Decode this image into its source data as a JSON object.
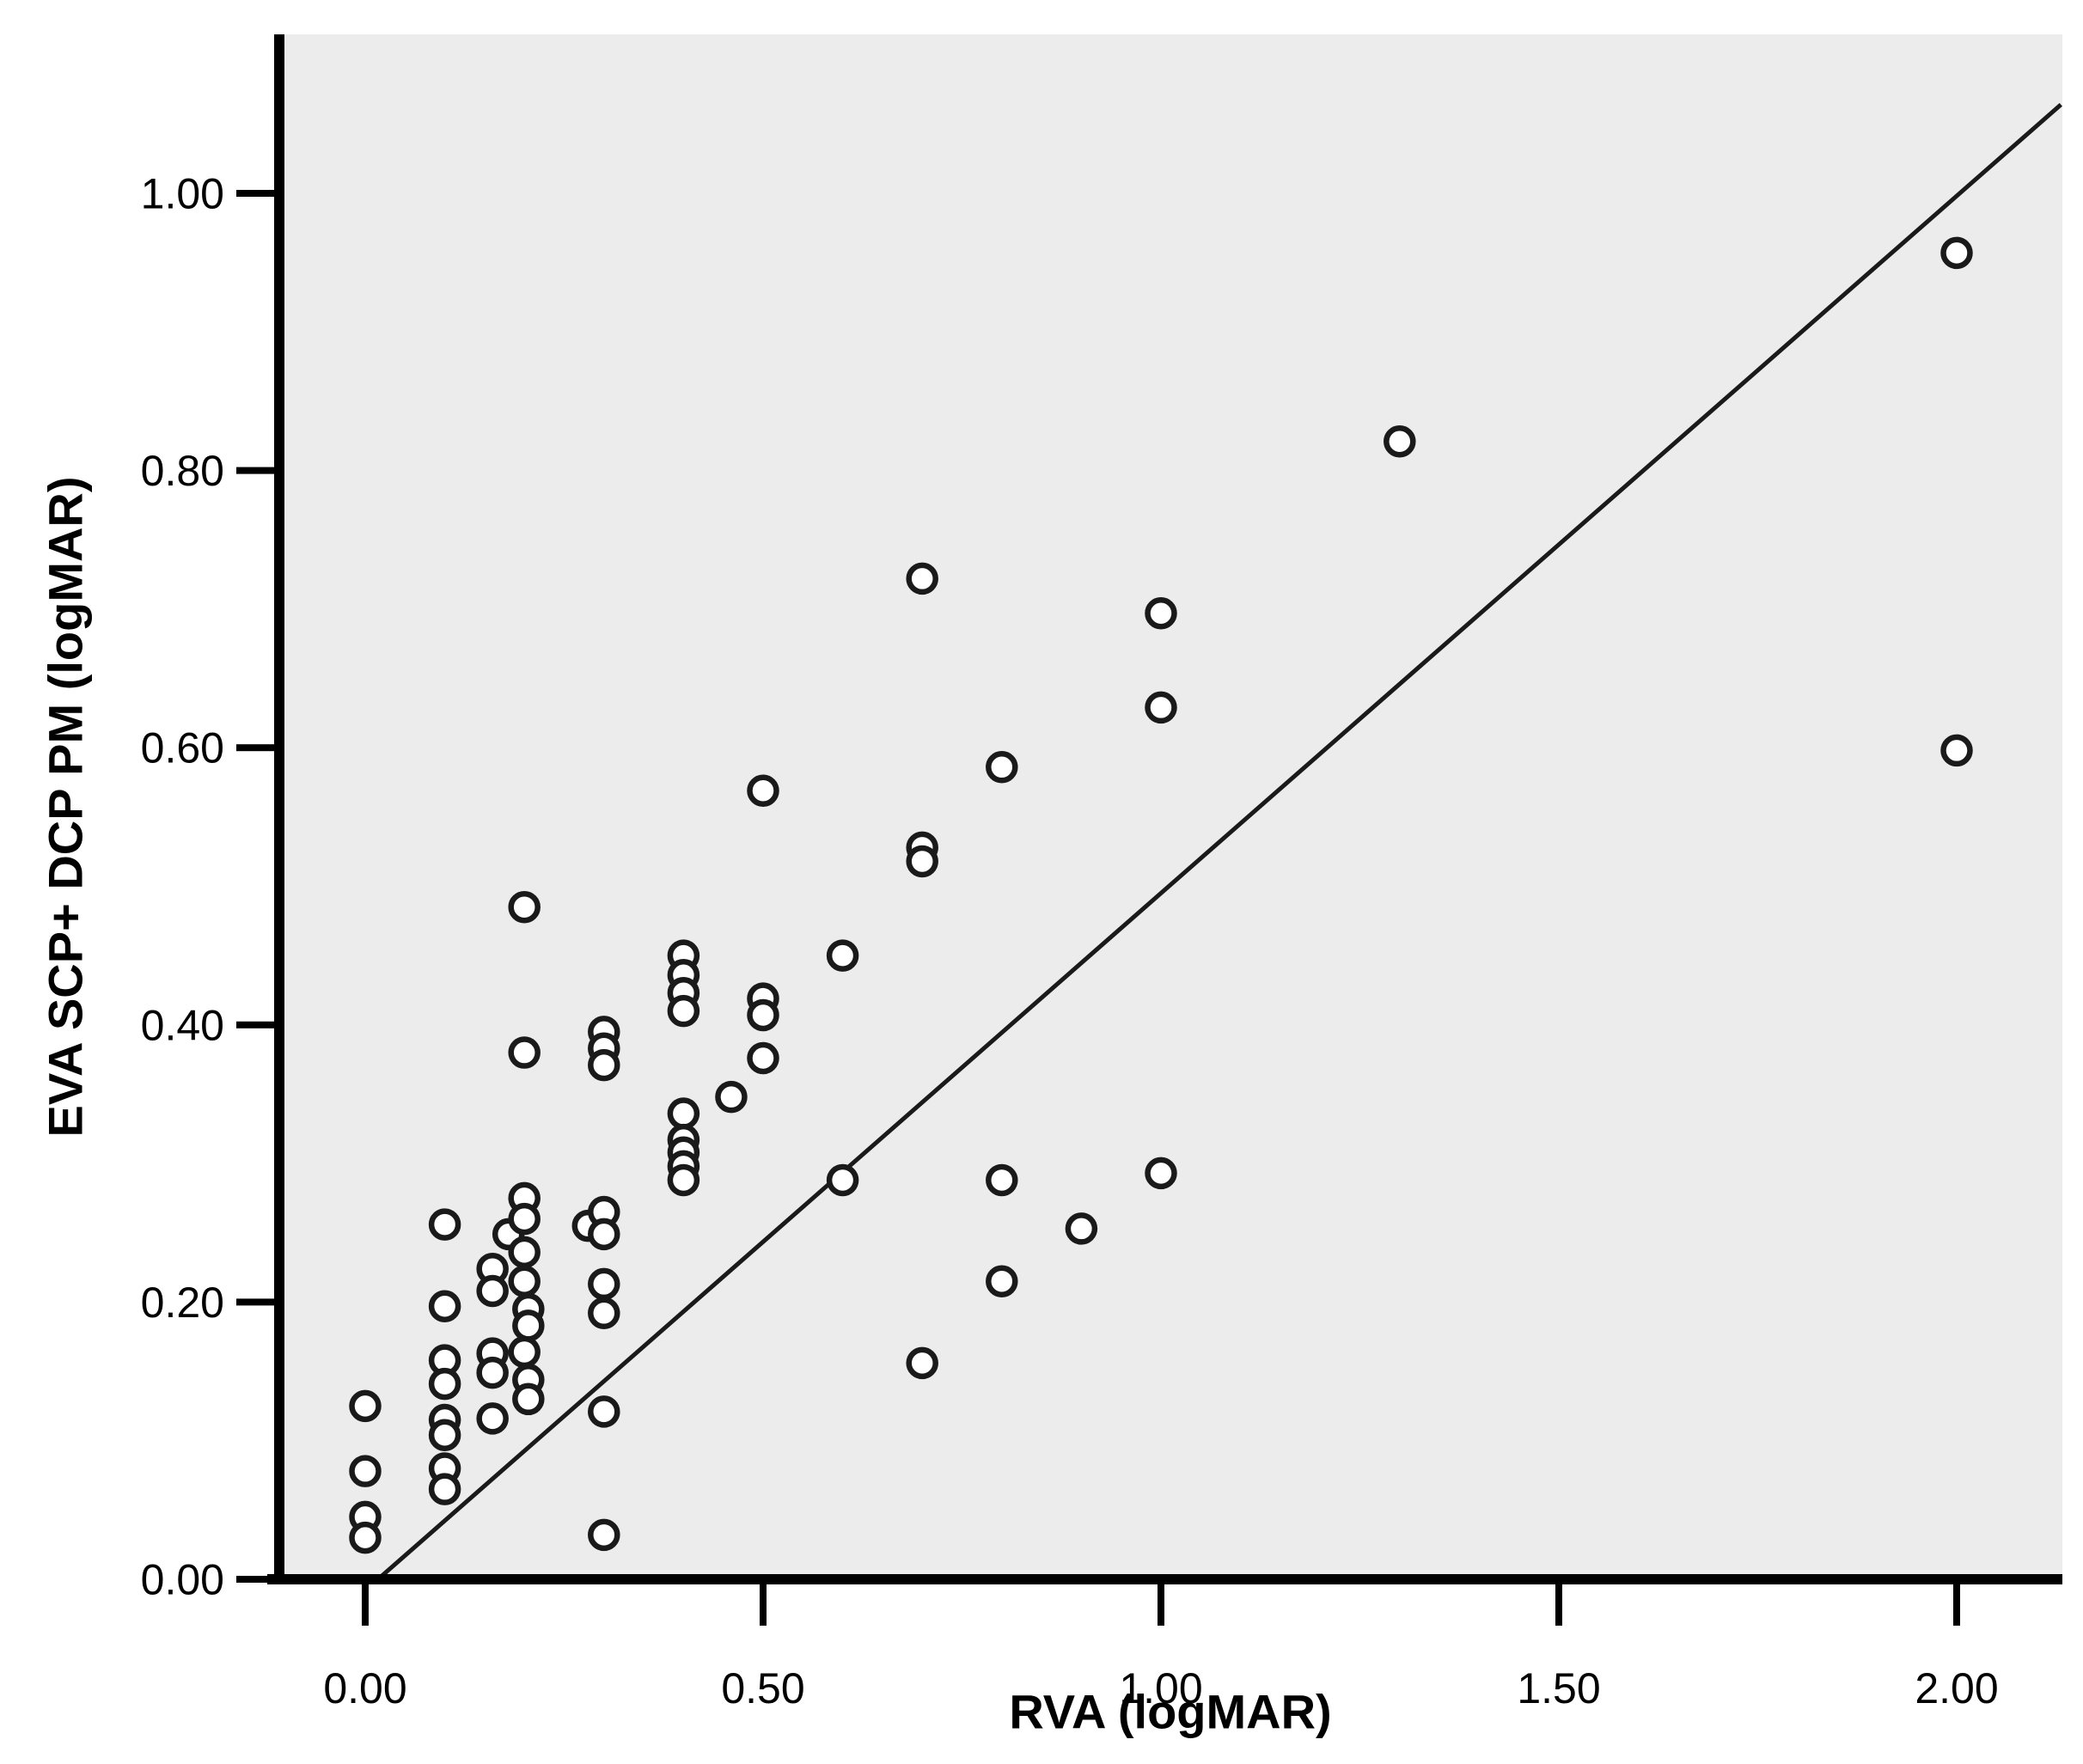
{
  "figure": {
    "kind": "scatter-plot-with-fit-line"
  },
  "chart_data": {
    "type": "scatter",
    "title": "",
    "xlabel": "RVA (logMAR)",
    "ylabel": "EVA SCP+ DCP PM (logMAR)",
    "x_ticks": [
      0.0,
      0.5,
      1.0,
      1.5,
      2.0
    ],
    "x_tick_labels": [
      "0.00",
      "0.50",
      "1.00",
      "1.50",
      "2.00"
    ],
    "y_ticks": [
      0.0,
      0.2,
      0.4,
      0.6,
      0.8,
      1.0
    ],
    "y_tick_labels": [
      "0.00",
      "0.20",
      "0.40",
      "0.60",
      "0.80",
      "1.00"
    ],
    "xlim": [
      -0.108,
      2.131
    ],
    "ylim": [
      0.0,
      1.115
    ],
    "grid": false,
    "legend": "none",
    "marker": "open-circle",
    "points": [
      [
        0.0,
        0.125
      ],
      [
        0.0,
        0.078
      ],
      [
        0.0,
        0.045
      ],
      [
        0.0,
        0.03
      ],
      [
        0.1,
        0.256
      ],
      [
        0.1,
        0.197
      ],
      [
        0.1,
        0.158
      ],
      [
        0.1,
        0.141
      ],
      [
        0.1,
        0.115
      ],
      [
        0.1,
        0.104
      ],
      [
        0.1,
        0.08
      ],
      [
        0.1,
        0.065
      ],
      [
        0.16,
        0.224
      ],
      [
        0.16,
        0.208
      ],
      [
        0.16,
        0.163
      ],
      [
        0.16,
        0.149
      ],
      [
        0.16,
        0.116
      ],
      [
        0.18,
        0.249
      ],
      [
        0.2,
        0.485
      ],
      [
        0.2,
        0.38
      ],
      [
        0.2,
        0.275
      ],
      [
        0.2,
        0.26
      ],
      [
        0.2,
        0.236
      ],
      [
        0.2,
        0.215
      ],
      [
        0.205,
        0.195
      ],
      [
        0.205,
        0.183
      ],
      [
        0.2,
        0.164
      ],
      [
        0.205,
        0.144
      ],
      [
        0.205,
        0.13
      ],
      [
        0.28,
        0.255
      ],
      [
        0.3,
        0.395
      ],
      [
        0.3,
        0.383
      ],
      [
        0.3,
        0.371
      ],
      [
        0.3,
        0.265
      ],
      [
        0.3,
        0.249
      ],
      [
        0.3,
        0.213
      ],
      [
        0.3,
        0.192
      ],
      [
        0.3,
        0.121
      ],
      [
        0.3,
        0.032
      ],
      [
        0.4,
        0.45
      ],
      [
        0.4,
        0.436
      ],
      [
        0.4,
        0.423
      ],
      [
        0.4,
        0.41
      ],
      [
        0.4,
        0.336
      ],
      [
        0.4,
        0.317
      ],
      [
        0.4,
        0.308
      ],
      [
        0.4,
        0.298
      ],
      [
        0.4,
        0.288
      ],
      [
        0.46,
        0.348
      ],
      [
        0.5,
        0.569
      ],
      [
        0.5,
        0.419
      ],
      [
        0.5,
        0.407
      ],
      [
        0.5,
        0.376
      ],
      [
        0.6,
        0.45
      ],
      [
        0.6,
        0.288
      ],
      [
        0.7,
        0.722
      ],
      [
        0.7,
        0.528
      ],
      [
        0.7,
        0.518
      ],
      [
        0.7,
        0.156
      ],
      [
        0.8,
        0.586
      ],
      [
        0.8,
        0.288
      ],
      [
        0.8,
        0.215
      ],
      [
        0.9,
        0.253
      ],
      [
        1.0,
        0.697
      ],
      [
        1.0,
        0.629
      ],
      [
        1.0,
        0.293
      ],
      [
        1.3,
        0.821
      ],
      [
        2.0,
        0.957
      ],
      [
        2.0,
        0.598
      ]
    ],
    "fit_line": {
      "x1": 0.016,
      "y1": 0.0,
      "x2": 2.131,
      "y2": 1.064
    },
    "colors": {
      "plot_background": "#ECECEC",
      "page_background": "#FFFFFF",
      "axis": "#000000",
      "tick_label": "#000000",
      "marker_stroke": "#1A1A1A",
      "marker_fill": "#FFFFFF",
      "fit_line": "#1A1A1A"
    }
  }
}
